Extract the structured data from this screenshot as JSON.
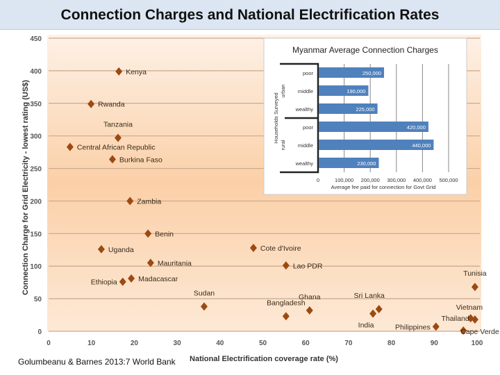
{
  "title": "Connection Charges and National Electrification Rates",
  "source": "Golumbeanu & Barnes 2013:7 World Bank",
  "chart_data": [
    {
      "type": "scatter",
      "xlabel": "National Electrification coverage rate (%)",
      "ylabel": "Connection Charge for Grid Electricity - lowest rating  (US$)",
      "xlim": [
        0,
        100
      ],
      "ylim": [
        0,
        450
      ],
      "xticks": [
        0,
        10,
        20,
        30,
        40,
        50,
        60,
        70,
        80,
        90,
        100
      ],
      "yticks": [
        0,
        50,
        100,
        150,
        200,
        250,
        300,
        350,
        400,
        450
      ],
      "grid": "horizontal",
      "marker_color": "#9c4a12",
      "points": [
        {
          "label": "Kenya",
          "x": 16.4,
          "y": 399
        },
        {
          "label": "Rwanda",
          "x": 9.9,
          "y": 349
        },
        {
          "label": "Tanzania",
          "x": 16.2,
          "y": 297
        },
        {
          "label": "Central African Republic",
          "x": 5,
          "y": 283
        },
        {
          "label": "Burkina Faso",
          "x": 14.9,
          "y": 264
        },
        {
          "label": "Zambia",
          "x": 19,
          "y": 200
        },
        {
          "label": "Benin",
          "x": 23.2,
          "y": 150
        },
        {
          "label": "Uganda",
          "x": 12.3,
          "y": 126
        },
        {
          "label": "Mauritania",
          "x": 23.8,
          "y": 105
        },
        {
          "label": "Madacascar",
          "x": 19.3,
          "y": 81
        },
        {
          "label": "Ethiopia",
          "x": 17.3,
          "y": 76
        },
        {
          "label": "Sudan",
          "x": 36.3,
          "y": 38
        },
        {
          "label": "Cote d'Ivoire",
          "x": 47.8,
          "y": 128
        },
        {
          "label": "Lao PDR",
          "x": 55.4,
          "y": 101
        },
        {
          "label": "Bangladesh",
          "x": 55.4,
          "y": 23
        },
        {
          "label": "Ghana",
          "x": 60.9,
          "y": 32
        },
        {
          "label": "Sri Lanka",
          "x": 77.1,
          "y": 34
        },
        {
          "label": "India",
          "x": 75.7,
          "y": 27
        },
        {
          "label": "Philippines",
          "x": 90.4,
          "y": 7
        },
        {
          "label": "Tunisia",
          "x": 99.5,
          "y": 68
        },
        {
          "label": "Vietnam",
          "x": 99.5,
          "y": 18
        },
        {
          "label": "Thailand",
          "x": 98.5,
          "y": 20
        },
        {
          "label": "Cape Verde",
          "x": 96.8,
          "y": 1
        }
      ]
    },
    {
      "type": "bar",
      "orientation": "horizontal",
      "title": "Myanmar Average Connection Charges",
      "xlabel": "Average fee paid for connection for Govt Grid",
      "ylabel": "Households Surveyed",
      "groups": [
        "urban",
        "rural"
      ],
      "categories": [
        "poor",
        "middle",
        "wealthy",
        "poor",
        "middle",
        "wealthy"
      ],
      "values": [
        250000,
        190000,
        225000,
        420000,
        440000,
        230000
      ],
      "value_labels": [
        "250,000",
        "190,000",
        "225,000",
        "420,000",
        "440,000",
        "230,000"
      ],
      "xlim": [
        0,
        500000
      ],
      "xticks": [
        "0",
        "100,000",
        "200,000",
        "300,000",
        "400,000",
        "500,000"
      ],
      "bar_color": "#4f81bd"
    }
  ]
}
